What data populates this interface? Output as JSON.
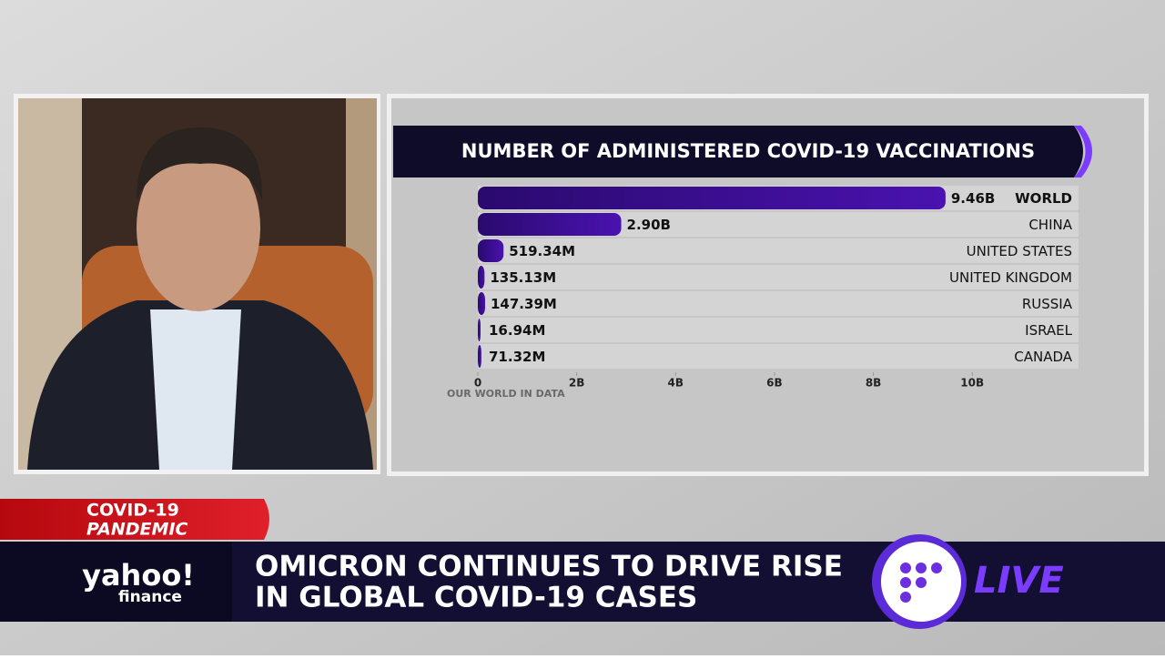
{
  "chart_data": {
    "type": "hbar",
    "title": "NUMBER OF ADMINISTERED COVID-19 VACCINATIONS",
    "categories": [
      "WORLD",
      "CHINA",
      "UNITED STATES",
      "UNITED KINGDOM",
      "RUSSIA",
      "ISRAEL",
      "CANADA"
    ],
    "values": [
      9.46,
      2.9,
      0.51934,
      0.13513,
      0.14739,
      0.01694,
      0.07132
    ],
    "value_labels": [
      "9.46B",
      "2.90B",
      "519.34M",
      "135.13M",
      "147.39M",
      "16.94M",
      "71.32M"
    ],
    "color": "#3b0d8f",
    "xlim": [
      0,
      12.15
    ],
    "xticks": [
      0,
      {
        "value": 2,
        "label": "2B"
      },
      {
        "value": 4,
        "label": "4B"
      },
      {
        "value": 6,
        "label": "6B"
      },
      {
        "value": 8,
        "label": "8B"
      },
      {
        "value": 10,
        "label": "10B"
      }
    ],
    "source": "OUR WORLD IN DATA"
  },
  "broadcast": {
    "tag": [
      "COVID-19",
      "PANDEMIC"
    ],
    "logo": [
      "yahoo!",
      "finance"
    ],
    "headline": [
      "OMICRON CONTINUES TO DRIVE RISE",
      "IN GLOBAL COVID-19 CASES"
    ],
    "live": "LIVE"
  }
}
